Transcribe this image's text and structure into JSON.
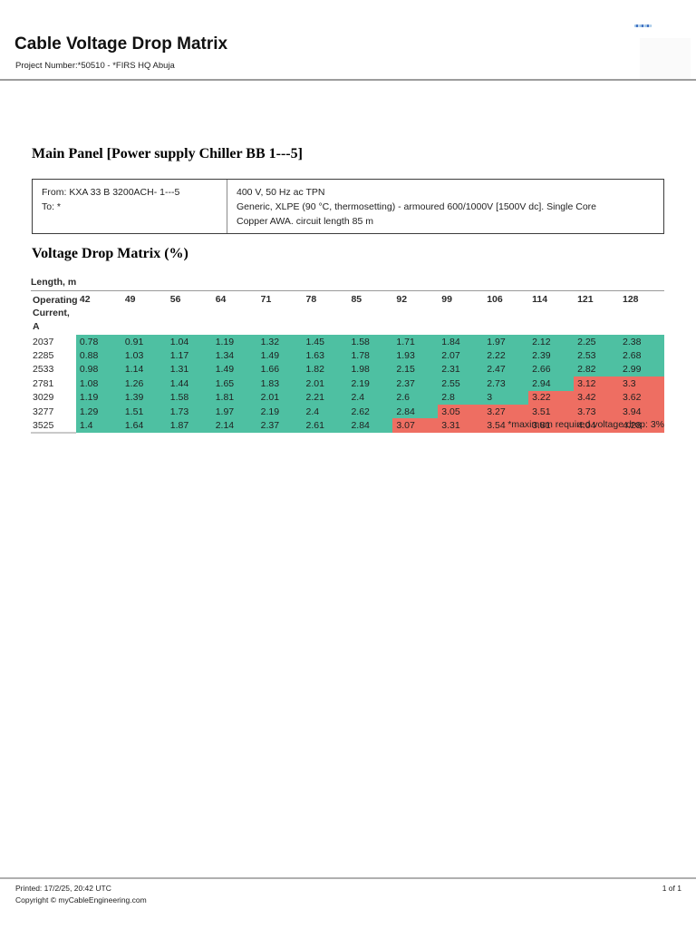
{
  "header": {
    "title": "Cable Voltage Drop Matrix",
    "project_line": "Project Number:*50510 - *FIRS HQ Abuja"
  },
  "main_panel": {
    "heading": "Main Panel [Power supply Chiller BB 1---5]",
    "from_line": "From: KXA 33 B 3200ACH- 1---5",
    "to_line": "To: *",
    "supply_line": "400 V, 50 Hz ac TPN",
    "cable_spec_line1": "Generic, XLPE (90 °C, thermosetting) - armoured 600/1000V [1500V dc]. Single Core",
    "cable_spec_line2": "Copper AWA. circuit length 85 m"
  },
  "matrix": {
    "heading": "Voltage Drop Matrix (%)",
    "length_header": "Length, m",
    "row_header_line1": "Operating",
    "row_header_line2": "Current, A",
    "columns": [
      42,
      49,
      56,
      64,
      71,
      78,
      85,
      92,
      99,
      106,
      114,
      121,
      128
    ],
    "rows": [
      {
        "current": 2037,
        "values": [
          0.78,
          0.91,
          1.04,
          1.19,
          1.32,
          1.45,
          1.58,
          1.71,
          1.84,
          1.97,
          2.12,
          2.25,
          2.38
        ]
      },
      {
        "current": 2285,
        "values": [
          0.88,
          1.03,
          1.17,
          1.34,
          1.49,
          1.63,
          1.78,
          1.93,
          2.07,
          2.22,
          2.39,
          2.53,
          2.68
        ]
      },
      {
        "current": 2533,
        "values": [
          0.98,
          1.14,
          1.31,
          1.49,
          1.66,
          1.82,
          1.98,
          2.15,
          2.31,
          2.47,
          2.66,
          2.82,
          2.99
        ]
      },
      {
        "current": 2781,
        "values": [
          1.08,
          1.26,
          1.44,
          1.65,
          1.83,
          2.01,
          2.19,
          2.37,
          2.55,
          2.73,
          2.94,
          3.12,
          3.3
        ]
      },
      {
        "current": 3029,
        "values": [
          1.19,
          1.39,
          1.58,
          1.81,
          2.01,
          2.21,
          2.4,
          2.6,
          2.8,
          3,
          3.22,
          3.42,
          3.62
        ]
      },
      {
        "current": 3277,
        "values": [
          1.29,
          1.51,
          1.73,
          1.97,
          2.19,
          2.4,
          2.62,
          2.84,
          3.05,
          3.27,
          3.51,
          3.73,
          3.94
        ]
      },
      {
        "current": 3525,
        "values": [
          1.4,
          1.64,
          1.87,
          2.14,
          2.37,
          2.61,
          2.84,
          3.07,
          3.31,
          3.54,
          3.81,
          4.04,
          4.28
        ]
      }
    ],
    "max_drop_percent": 3,
    "ok_color": "#4ec0a2",
    "exceed_color": "#ee6e62",
    "footnote": "*maximum required voltage drop: 3%"
  },
  "footer": {
    "printed": "Printed: 17/2/25, 20:42 UTC",
    "copyright": "Copyright © myCableEngineering.com",
    "page": "1 of 1"
  }
}
